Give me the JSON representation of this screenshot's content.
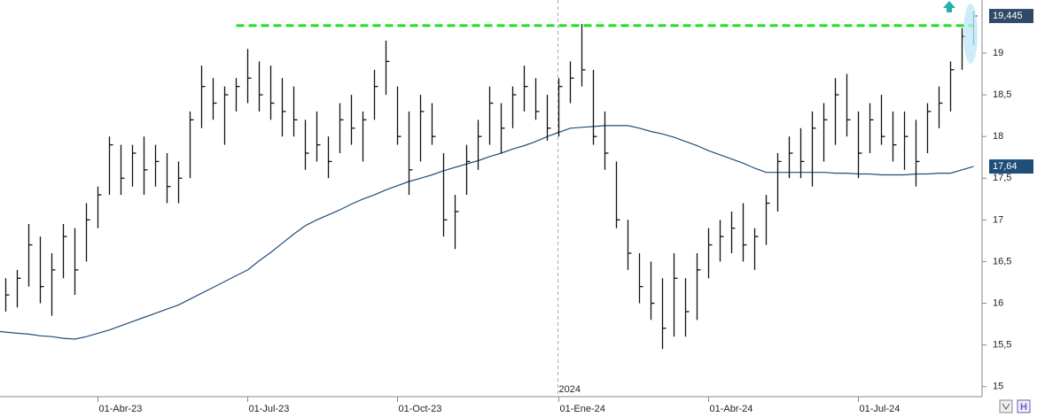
{
  "chart_data": {
    "type": "ohlc",
    "categories": [
      null,
      null,
      null,
      null,
      null,
      null,
      null,
      null,
      "01-Abr-23",
      null,
      null,
      null,
      null,
      null,
      null,
      null,
      null,
      null,
      null,
      null,
      null,
      "01-Jul-23",
      null,
      null,
      null,
      null,
      null,
      null,
      null,
      null,
      null,
      null,
      null,
      null,
      "01-Oct-23",
      null,
      null,
      null,
      null,
      null,
      null,
      null,
      null,
      null,
      null,
      null,
      null,
      null,
      "01-Ene-24",
      null,
      null,
      null,
      null,
      null,
      null,
      null,
      null,
      null,
      null,
      null,
      null,
      "01-Abr-24",
      null,
      null,
      null,
      null,
      null,
      null,
      null,
      null,
      null,
      null,
      null,
      null,
      "01-Jul-24",
      null,
      null,
      null,
      null,
      null,
      null,
      null,
      null,
      null,
      null
    ],
    "high": [
      16.3,
      16.4,
      16.95,
      16.8,
      16.6,
      16.95,
      16.9,
      17.2,
      17.4,
      18.0,
      17.9,
      17.9,
      18.0,
      17.9,
      17.8,
      17.7,
      18.3,
      18.85,
      18.7,
      18.6,
      18.7,
      19.05,
      18.9,
      18.85,
      18.7,
      18.6,
      18.2,
      18.3,
      18.0,
      18.4,
      18.5,
      18.3,
      18.8,
      19.15,
      18.6,
      18.3,
      18.5,
      18.4,
      17.8,
      17.3,
      17.9,
      18.2,
      18.6,
      18.4,
      18.6,
      18.85,
      18.7,
      18.5,
      18.7,
      18.9,
      19.35,
      18.8,
      18.3,
      17.7,
      17.0,
      16.6,
      16.5,
      16.3,
      16.6,
      16.3,
      16.6,
      16.9,
      17.0,
      17.1,
      17.2,
      16.9,
      17.3,
      17.8,
      18.0,
      18.1,
      18.3,
      18.4,
      18.7,
      18.75,
      18.3,
      18.4,
      18.5,
      18.3,
      18.3,
      18.2,
      18.4,
      18.6,
      18.9,
      19.3,
      19.5
    ],
    "low": [
      15.9,
      15.95,
      16.2,
      16.0,
      15.85,
      16.3,
      16.1,
      16.5,
      16.9,
      17.3,
      17.3,
      17.4,
      17.3,
      17.4,
      17.2,
      17.2,
      17.5,
      18.1,
      18.2,
      17.9,
      18.3,
      18.4,
      18.3,
      18.2,
      18.0,
      18.0,
      17.6,
      17.7,
      17.5,
      17.8,
      17.9,
      17.7,
      18.2,
      18.5,
      17.9,
      17.3,
      17.7,
      17.9,
      16.8,
      16.65,
      17.3,
      17.6,
      17.9,
      17.8,
      18.1,
      18.3,
      18.2,
      17.95,
      18.0,
      18.4,
      18.6,
      17.9,
      17.6,
      16.9,
      16.4,
      16.0,
      15.8,
      15.45,
      15.6,
      15.6,
      15.8,
      16.3,
      16.5,
      16.6,
      16.5,
      16.4,
      16.7,
      17.1,
      17.5,
      17.5,
      17.4,
      17.7,
      17.9,
      18.0,
      17.5,
      17.8,
      17.9,
      17.7,
      17.6,
      17.4,
      17.8,
      18.1,
      18.3,
      18.8,
      19.1
    ],
    "close": [
      16.1,
      16.3,
      16.7,
      16.2,
      16.4,
      16.8,
      16.4,
      17.0,
      17.3,
      17.9,
      17.5,
      17.8,
      17.6,
      17.7,
      17.4,
      17.5,
      18.2,
      18.6,
      18.4,
      18.5,
      18.6,
      18.7,
      18.5,
      18.4,
      18.3,
      18.2,
      17.8,
      17.9,
      17.7,
      18.2,
      18.1,
      18.2,
      18.6,
      18.9,
      18.0,
      17.6,
      18.3,
      18.0,
      17.0,
      17.1,
      17.7,
      18.0,
      18.4,
      18.1,
      18.5,
      18.6,
      18.3,
      18.1,
      18.6,
      18.7,
      18.8,
      18.0,
      17.8,
      17.0,
      16.6,
      16.2,
      16.0,
      15.7,
      16.3,
      15.9,
      16.4,
      16.7,
      16.8,
      16.9,
      16.7,
      16.8,
      17.2,
      17.7,
      17.8,
      17.7,
      18.1,
      18.2,
      18.5,
      18.2,
      17.8,
      18.2,
      18.0,
      17.9,
      18.0,
      17.7,
      18.3,
      18.4,
      18.8,
      19.2,
      19.445
    ],
    "bar_color": "#111111",
    "moving_average": {
      "color": "#1f4e79",
      "values": [
        15.66,
        15.64,
        15.63,
        15.61,
        15.6,
        15.58,
        15.57,
        15.6,
        15.64,
        15.68,
        15.73,
        15.78,
        15.83,
        15.88,
        15.93,
        15.98,
        16.05,
        16.12,
        16.19,
        16.26,
        16.33,
        16.4,
        16.51,
        16.61,
        16.72,
        16.83,
        16.93,
        17.0,
        17.06,
        17.12,
        17.19,
        17.25,
        17.3,
        17.36,
        17.41,
        17.46,
        17.5,
        17.54,
        17.59,
        17.63,
        17.67,
        17.71,
        17.76,
        17.8,
        17.85,
        17.89,
        17.94,
        18.0,
        18.05,
        18.1,
        18.11,
        18.12,
        18.13,
        18.13,
        18.13,
        18.1,
        18.06,
        18.03,
        17.99,
        17.94,
        17.89,
        17.83,
        17.78,
        17.73,
        17.68,
        17.62,
        17.57,
        17.57,
        17.57,
        17.57,
        17.57,
        17.57,
        17.56,
        17.56,
        17.55,
        17.55,
        17.54,
        17.54,
        17.54,
        17.55,
        17.55,
        17.56,
        17.56,
        17.6,
        17.64
      ]
    },
    "resistance": {
      "value": 19.33,
      "color": "#22dd22"
    },
    "last_price": {
      "value": 19.445,
      "label": "19,445"
    },
    "ma_last": {
      "value": 17.64,
      "label": "17,64"
    },
    "year_marker": {
      "text": "2024",
      "category": "01-Ene-24"
    },
    "ylim": [
      14.88,
      19.637
    ],
    "yticks": [
      15,
      {
        "value": 15.5,
        "label": "15,5"
      },
      16,
      {
        "value": 16.5,
        "label": "16,5"
      },
      17,
      {
        "value": 17.5,
        "label": "17,5"
      },
      18,
      {
        "value": 18.5,
        "label": "18,5"
      },
      19
    ]
  }
}
